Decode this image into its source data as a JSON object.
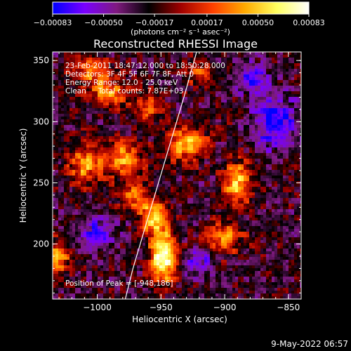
{
  "chart_data": {
    "type": "heatmap",
    "title": "Reconstructed RHESSI Image",
    "xlabel": "Heliocentric X (arcsec)",
    "ylabel": "Heliocentric Y (arcsec)",
    "xlim": [
      -1035,
      -840
    ],
    "ylim": [
      155,
      357
    ],
    "x_ticks": [
      -1000,
      -950,
      -900,
      -850
    ],
    "x_tick_labels": [
      "−1000",
      "−950",
      "−900",
      "−850"
    ],
    "y_ticks": [
      200,
      250,
      300,
      350
    ],
    "y_tick_labels": [
      "200",
      "250",
      "300",
      "350"
    ],
    "colorbar": {
      "range": [
        -0.00083,
        0.00083
      ],
      "ticks": [
        -0.00083,
        -0.0005,
        -0.00017,
        0.00017,
        0.0005,
        0.00083
      ],
      "tick_labels": [
        "−0.00083",
        "−0.00050",
        "−0.00017",
        "0.00017",
        "0.00050",
        "0.00083"
      ],
      "units": "(photons cm⁻² s⁻¹ asec⁻²)",
      "colormap": [
        "#0000ff",
        "#7a00ff",
        "#7f1a7f",
        "#000000",
        "#a00000",
        "#ff4000",
        "#ffaa00",
        "#ffff60",
        "#ffffff"
      ]
    },
    "annotations": [
      "23-Feb-2011 18:47:12.000 to 18:50:28.000",
      "Detectors: 3F 4F 5F 6F 7F 8F, Att 0",
      "Energy Range: 12.0 - 25.0 keV",
      "Clean     Total counts: 7.87E+03"
    ],
    "peak_label": "Position of Peak = [-948,186]",
    "peak": [
      -948,
      186
    ],
    "sources": [
      {
        "x": -948,
        "y": 190,
        "sx": 7,
        "sy": 14,
        "amp": 1.0
      },
      {
        "x": -955,
        "y": 222,
        "sx": 8,
        "sy": 9,
        "amp": 0.7
      },
      {
        "x": -980,
        "y": 270,
        "sx": 12,
        "sy": 10,
        "amp": 0.55
      },
      {
        "x": -1010,
        "y": 265,
        "sx": 9,
        "sy": 12,
        "amp": 0.5
      },
      {
        "x": -990,
        "y": 322,
        "sx": 10,
        "sy": 8,
        "amp": 0.5
      },
      {
        "x": -1005,
        "y": 340,
        "sx": 12,
        "sy": 8,
        "amp": 0.45
      },
      {
        "x": -930,
        "y": 282,
        "sx": 11,
        "sy": 10,
        "amp": 0.6
      },
      {
        "x": -890,
        "y": 250,
        "sx": 8,
        "sy": 12,
        "amp": 0.65
      },
      {
        "x": -900,
        "y": 205,
        "sx": 10,
        "sy": 9,
        "amp": 0.5
      },
      {
        "x": -1030,
        "y": 190,
        "sx": 6,
        "sy": 10,
        "amp": 0.55
      },
      {
        "x": -960,
        "y": 312,
        "sx": 8,
        "sy": 8,
        "amp": 0.4
      },
      {
        "x": -970,
        "y": 240,
        "sx": 9,
        "sy": 8,
        "amp": 0.45
      },
      {
        "x": -920,
        "y": 340,
        "sx": 8,
        "sy": 8,
        "amp": 0.35
      }
    ],
    "negatives": [
      {
        "x": -860,
        "y": 300,
        "sx": 12,
        "sy": 14,
        "amp": 0.55
      },
      {
        "x": -1000,
        "y": 210,
        "sx": 10,
        "sy": 9,
        "amp": 0.35
      },
      {
        "x": -920,
        "y": 185,
        "sx": 8,
        "sy": 7,
        "amp": 0.35
      },
      {
        "x": -880,
        "y": 335,
        "sx": 10,
        "sy": 8,
        "amp": 0.4
      }
    ],
    "limb": [
      [
        -922,
        357
      ],
      [
        -932,
        320
      ],
      [
        -942,
        285
      ],
      [
        -952,
        250
      ],
      [
        -962,
        215
      ],
      [
        -972,
        180
      ],
      [
        -978,
        155
      ]
    ]
  },
  "footer": {
    "date": "9-May-2022 06:57"
  },
  "colors": {
    "background": "#000000",
    "foreground": "#ffffff",
    "limb": "#ffffff"
  }
}
